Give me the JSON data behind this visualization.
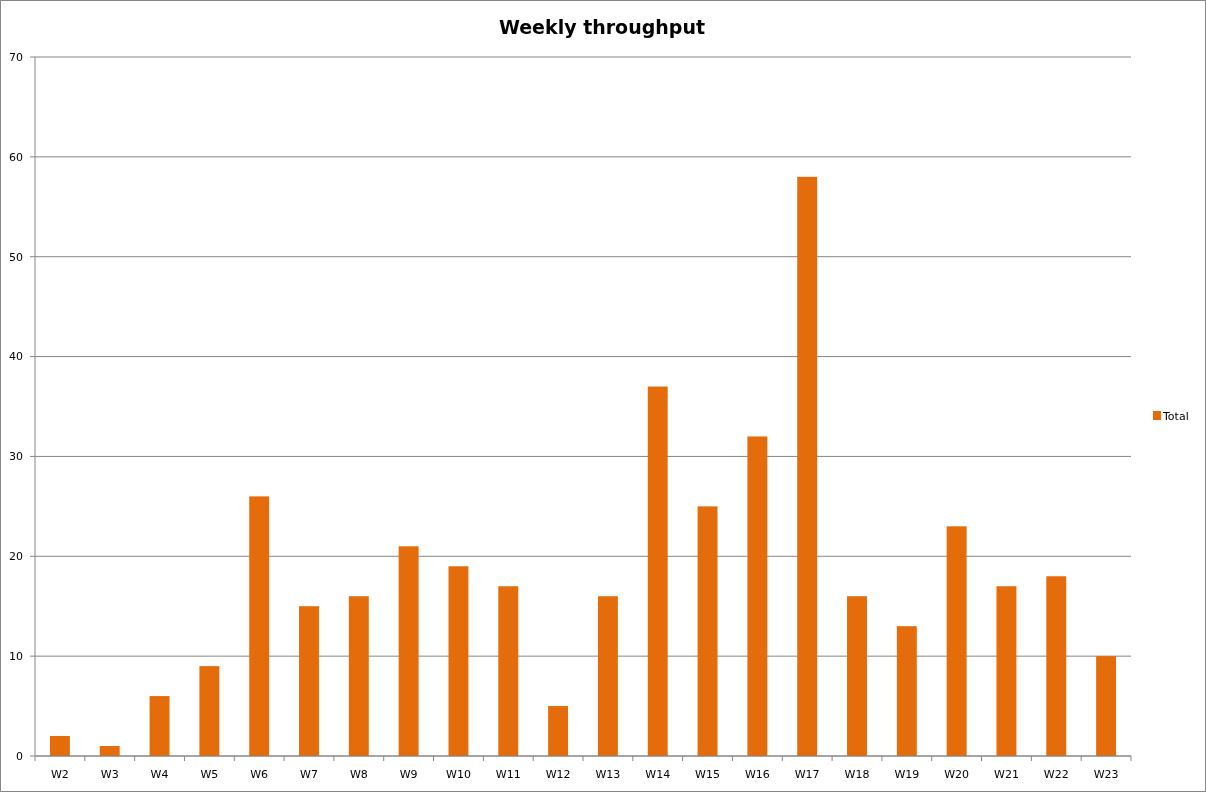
{
  "chart_data": {
    "type": "bar",
    "title": "Weekly throughput",
    "categories": [
      "W2",
      "W3",
      "W4",
      "W5",
      "W6",
      "W7",
      "W8",
      "W9",
      "W10",
      "W11",
      "W12",
      "W13",
      "W14",
      "W15",
      "W16",
      "W17",
      "W18",
      "W19",
      "W20",
      "W21",
      "W22",
      "W23"
    ],
    "series": [
      {
        "name": "Total",
        "color": "#e46c0a",
        "values": [
          2,
          1,
          6,
          9,
          26,
          15,
          16,
          21,
          19,
          17,
          5,
          16,
          37,
          25,
          32,
          58,
          16,
          13,
          23,
          17,
          18,
          10
        ]
      }
    ],
    "ylim": [
      0,
      70
    ],
    "yticks": [
      0,
      10,
      20,
      30,
      40,
      50,
      60,
      70
    ],
    "grid": "y",
    "legend": "right"
  }
}
